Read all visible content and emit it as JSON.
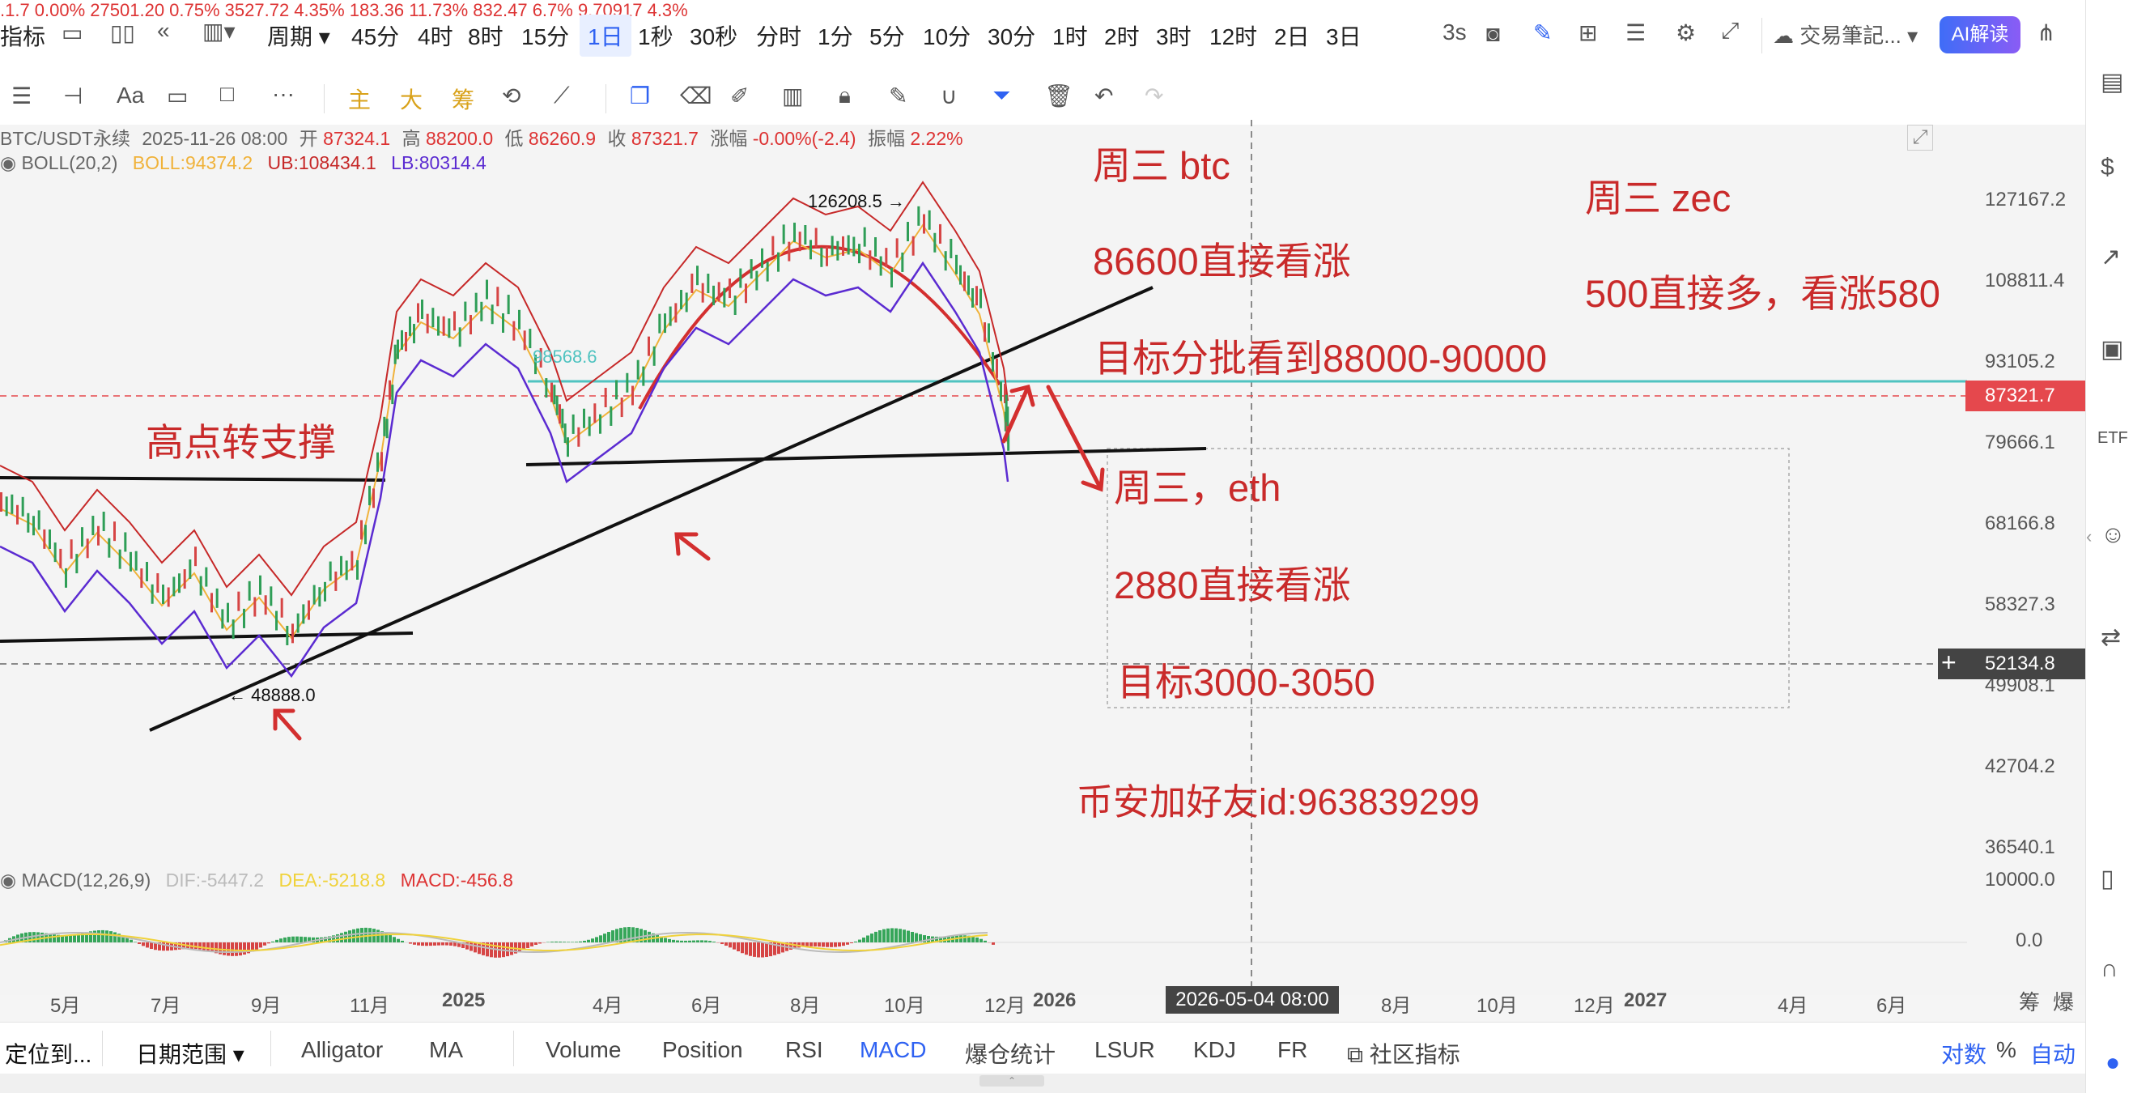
{
  "top_cut": ".1.7  0.00%        27501.20  0.75%          3527.72  4.35%          183.36  11.73%         832.47  6.7%                 9.70917  4.3%",
  "toolbar": {
    "indicators": "指标",
    "period": "周期",
    "intervals": [
      "45分",
      "4时",
      "8时",
      "15分",
      "1日",
      "1秒",
      "30秒",
      "分时",
      "1分",
      "5分",
      "10分",
      "30分",
      "1时",
      "2时",
      "3时",
      "12时",
      "2日",
      "3日"
    ],
    "active_interval": "1日",
    "refresh": "3s",
    "notebook": "交易筆記...",
    "ai_button": "AI解读"
  },
  "drawbar": {
    "labels": [
      "主",
      "大",
      "筹"
    ],
    "font_label": "Aa",
    "more": "···"
  },
  "legend": {
    "symbol": "BTC/USDT永续",
    "date": "2025-11-26 08:00",
    "open_label": "开",
    "open": "87324.1",
    "high_label": "高",
    "high": "88200.0",
    "low_label": "低",
    "low": "86260.9",
    "close_label": "收",
    "close": "87321.7",
    "change_label": "涨幅",
    "change": "-0.00%(-2.4)",
    "amp_label": "振幅",
    "amp": "2.22%",
    "boll_name": "BOLL(20,2)",
    "boll": "BOLL:94374.2",
    "ub": "UB:108434.1",
    "lb": "LB:80314.4",
    "macd_name": "MACD(12,26,9)",
    "dif": "DIF:-5447.2",
    "dea": "DEA:-5218.8",
    "macd": "MACD:-456.8"
  },
  "annotations": {
    "btc_title": "周三 btc",
    "btc_entry": "86600直接看涨",
    "btc_target": "目标分批看到88000-90000",
    "zec_title": "周三 zec",
    "zec_entry": "500直接多，看涨580",
    "eth_title": "周三，eth",
    "eth_entry": "2880直接看涨",
    "eth_target": "目标3000-3050",
    "support_label": "高点转支撑",
    "contact": "币安加好友id:963839299",
    "high_mark": "126208.5 →",
    "low_mark": "← 48888.0",
    "hline_value": "98568.6"
  },
  "y_axis": {
    "price_ticks": [
      "127167.2",
      "108811.4",
      "93105.2",
      "79666.1",
      "68166.8",
      "58327.3",
      "49908.1",
      "42704.2",
      "36540.1"
    ],
    "current_price": "87321.7",
    "crosshair_price": "52134.8",
    "macd_ticks": [
      "10000.0",
      "0.0"
    ]
  },
  "x_axis": {
    "ticks": [
      "5月",
      "7月",
      "9月",
      "11月",
      "2025",
      "4月",
      "6月",
      "8月",
      "10月",
      "12月",
      "2026",
      "8月",
      "10月",
      "12月",
      "2027",
      "4月",
      "6月"
    ],
    "crosshair_time": "2026-05-04 08:00",
    "right_labels": [
      "筹",
      "爆"
    ]
  },
  "bottom_bar": {
    "locate": "定位到...",
    "date_range": "日期范围",
    "indicators": [
      "Alligator",
      "MA",
      "Volume",
      "Position",
      "RSI",
      "MACD",
      "爆仓统计",
      "LSUR",
      "KDJ",
      "FR"
    ],
    "active_indicator": "MACD",
    "community": "社区指标",
    "log": "对数",
    "percent": "%",
    "auto": "自动"
  },
  "colors": {
    "annotation_red": "#c92a2a",
    "accent_blue": "#2f62f2",
    "price_tag_red": "#e5484d",
    "boll_mid": "#f0b23a",
    "boll_ub": "#c62828",
    "boll_lb": "#5b2bd1",
    "teal_line": "#4fc3c0"
  }
}
